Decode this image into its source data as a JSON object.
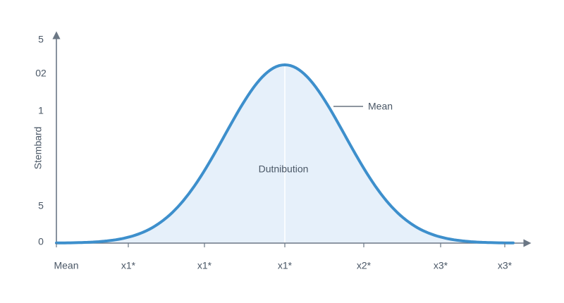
{
  "axis": {
    "y_title": "Stembard",
    "y_labels": [
      "5",
      "02",
      "1",
      "5",
      "0"
    ],
    "x_labels": [
      "Mean",
      "x1*",
      "x1*",
      "x1*",
      "x2*",
      "x3*",
      "x3*"
    ]
  },
  "annotations": {
    "mean": "Mean",
    "center": "Dutnibution"
  }
}
